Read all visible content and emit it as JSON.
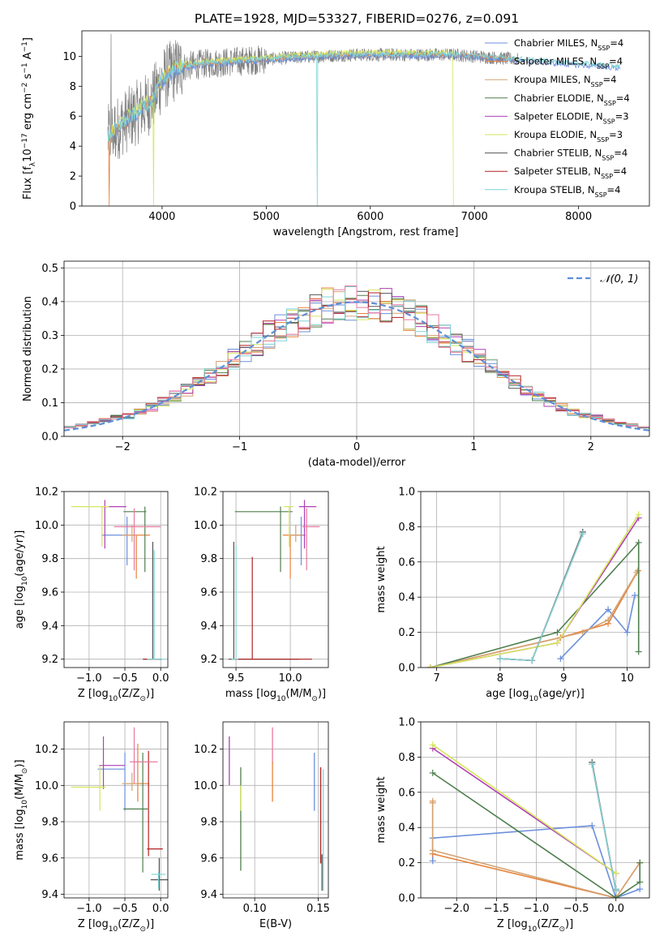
{
  "colors": {
    "Chabrier MILES": "#6c8fdc",
    "Salpeter MILES": "#e8823a",
    "Kroupa MILES": "#d4a373",
    "Chabrier ELODIE": "#4f7f4f",
    "Salpeter ELODIE": "#b03fb5",
    "Kroupa ELODIE": "#d6e65c",
    "Chabrier STELIB": "#555555",
    "Salpeter STELIB": "#b22222",
    "Kroupa STELIB": "#7fd4d8",
    "pink": "#e8799f"
  },
  "chart_data": [
    {
      "id": "spectrum",
      "type": "line",
      "title": "PLATE=1928, MJD=53327, FIBERID=0276, z=0.091",
      "xlabel": "wavelength [Angstrom, rest frame]",
      "ylabel": "Flux [f_λ10^-17 erg cm^-2 s^-1 A^-1]",
      "xlim": [
        3230,
        8680
      ],
      "ylim": [
        0,
        11.7
      ],
      "xticks": [
        4000,
        5000,
        6000,
        7000,
        8000
      ],
      "yticks": [
        0,
        2,
        4,
        6,
        8,
        10
      ],
      "legend_position": "right",
      "legend": [
        {
          "name": "Chabrier MILES",
          "nssp": "4"
        },
        {
          "name": "Salpeter MILES",
          "nssp": "4"
        },
        {
          "name": "Kroupa MILES",
          "nssp": "4"
        },
        {
          "name": "Chabrier ELODIE",
          "nssp": "4"
        },
        {
          "name": "Salpeter ELODIE",
          "nssp": "3"
        },
        {
          "name": "Kroupa ELODIE",
          "nssp": "3"
        },
        {
          "name": "Chabrier STELIB",
          "nssp": "4"
        },
        {
          "name": "Salpeter STELIB",
          "nssp": "4"
        },
        {
          "name": "Kroupa STELIB",
          "nssp": "4"
        }
      ],
      "continuum": {
        "x": [
          3480,
          3600,
          3750,
          3900,
          4000,
          4100,
          4200,
          4400,
          4600,
          4800,
          5000,
          5200,
          5500,
          5800,
          6000,
          6300,
          6600,
          6800,
          7000,
          7200,
          7400,
          7600,
          7800,
          8000,
          8200,
          8400
        ],
        "y": [
          4.6,
          5.4,
          6.2,
          7.0,
          8.4,
          9.0,
          9.3,
          9.5,
          9.6,
          9.7,
          9.8,
          9.9,
          10.0,
          10.1,
          10.1,
          10.1,
          10.1,
          10.1,
          10.0,
          9.9,
          9.8,
          9.7,
          9.6,
          9.5,
          9.4,
          9.3
        ]
      }
    },
    {
      "id": "residuals",
      "type": "line",
      "xlabel": "(data-model)/error",
      "ylabel": "Normed distribution",
      "xlim": [
        -2.5,
        2.5
      ],
      "ylim": [
        0,
        0.52
      ],
      "xticks": [
        -2,
        -1,
        0,
        1,
        2
      ],
      "yticks": [
        0.0,
        0.1,
        0.2,
        0.3,
        0.4,
        0.5
      ],
      "legend": [
        {
          "name": "𝒩(0, 1)",
          "style": "dashed"
        }
      ],
      "legend_position": "top-right"
    },
    {
      "id": "age-vs-Z",
      "type": "scatter",
      "xlabel": "Z [log10(Z/Z☉)]",
      "ylabel": "age  [log10(age/yr)]",
      "xlim": [
        -1.35,
        0.1
      ],
      "ylim": [
        9.15,
        10.2
      ],
      "xticks": [
        -1.0,
        -0.5,
        0.0
      ],
      "yticks": [
        9.2,
        9.4,
        9.6,
        9.8,
        10.0,
        10.2
      ],
      "points": [
        {
          "s": "Chabrier MILES",
          "x": -0.47,
          "y": 9.94,
          "xe": [
            0.36,
            0
          ],
          "ye": [
            0.18,
            0.11
          ]
        },
        {
          "s": "Salpeter MILES",
          "x": -0.34,
          "y": 9.94,
          "xe": [
            0.15,
            0.19
          ],
          "ye": [
            0.26,
            0
          ]
        },
        {
          "s": "Kroupa MILES",
          "x": -0.4,
          "y": 9.94,
          "xe": [
            0.14,
            0.08
          ],
          "ye": [
            0.04,
            0.06
          ]
        },
        {
          "s": "Chabrier ELODIE",
          "x": -0.22,
          "y": 10.08,
          "xe": [
            0.3,
            0.02
          ],
          "ye": [
            0.36,
            0.03
          ]
        },
        {
          "s": "Salpeter ELODIE",
          "x": -0.78,
          "y": 10.11,
          "xe": [
            0.05,
            0.3
          ],
          "ye": [
            0.25,
            0.04
          ]
        },
        {
          "s": "Kroupa ELODIE",
          "x": -0.82,
          "y": 10.11,
          "xe": [
            0.43,
            0.1
          ],
          "ye": [
            0.24,
            0
          ]
        },
        {
          "s": "Chabrier STELIB",
          "x": -0.11,
          "y": 9.2,
          "xe": [
            0.13,
            0.13
          ],
          "ye": [
            0,
            0.7
          ]
        },
        {
          "s": "Salpeter STELIB",
          "x": -0.11,
          "y": 9.2,
          "xe": [
            0.14,
            0.12
          ],
          "ye": [
            0,
            0
          ]
        },
        {
          "s": "Kroupa STELIB",
          "x": -0.09,
          "y": 9.2,
          "xe": [
            0.1,
            0.16
          ],
          "ye": [
            0,
            0.65
          ]
        },
        {
          "s": "pink",
          "x": -0.37,
          "y": 9.99,
          "xe": [
            0.28,
            0.37
          ],
          "ye": [
            0.26,
            0.11
          ]
        }
      ]
    },
    {
      "id": "age-vs-mass",
      "type": "scatter",
      "xlabel": "mass [log10(M/M☉)]",
      "ylabel": "",
      "xlim": [
        9.38,
        10.35
      ],
      "ylim": [
        9.15,
        10.2
      ],
      "xticks": [
        9.5,
        10.0
      ],
      "yticks": [
        9.2,
        9.4,
        9.6,
        9.8,
        10.0,
        10.2
      ],
      "points": [
        {
          "s": "Chabrier MILES",
          "x": 10.1,
          "y": 9.94,
          "xe": [
            0.1,
            0.04
          ],
          "ye": [
            0.18,
            0.11
          ]
        },
        {
          "s": "Salpeter MILES",
          "x": 10.0,
          "y": 9.94,
          "xe": [
            0.07,
            0.11
          ],
          "ye": [
            0.26,
            0
          ]
        },
        {
          "s": "Kroupa MILES",
          "x": 10.05,
          "y": 9.94,
          "xe": [
            0.06,
            0.04
          ],
          "ye": [
            0.04,
            0.06
          ]
        },
        {
          "s": "Chabrier ELODIE",
          "x": 9.91,
          "y": 10.08,
          "xe": [
            0.42,
            0.11
          ],
          "ye": [
            0.36,
            0.03
          ]
        },
        {
          "s": "Salpeter ELODIE",
          "x": 10.13,
          "y": 10.11,
          "xe": [
            0.05,
            0.11
          ],
          "ye": [
            0.25,
            0.04
          ]
        },
        {
          "s": "Kroupa ELODIE",
          "x": 9.99,
          "y": 10.11,
          "xe": [
            0.05,
            0.04
          ],
          "ye": [
            0.24,
            0
          ]
        },
        {
          "s": "Chabrier STELIB",
          "x": 9.48,
          "y": 9.2,
          "xe": [
            0.05,
            0.6
          ],
          "ye": [
            0,
            0.7
          ]
        },
        {
          "s": "Salpeter STELIB",
          "x": 9.65,
          "y": 9.2,
          "xe": [
            0.18,
            0.55
          ],
          "ye": [
            0,
            0.61
          ]
        },
        {
          "s": "Kroupa STELIB",
          "x": 9.5,
          "y": 9.2,
          "xe": [
            0.04,
            0.02
          ],
          "ye": [
            0,
            0.68
          ]
        },
        {
          "s": "pink",
          "x": 10.15,
          "y": 9.99,
          "xe": [
            0.04,
            0.12
          ],
          "ye": [
            0.26,
            0.11
          ]
        }
      ]
    },
    {
      "id": "weight-vs-age",
      "type": "line",
      "xlabel": "age  [log10(age/yr)]",
      "ylabel": "mass weight",
      "xlim": [
        6.75,
        10.35
      ],
      "ylim": [
        0.0,
        1.0
      ],
      "xticks": [
        7,
        8,
        9,
        10
      ],
      "yticks": [
        0.0,
        0.2,
        0.4,
        0.6,
        0.8,
        1.0
      ],
      "series": [
        {
          "s": "Chabrier MILES",
          "x": [
            8.95,
            9.7,
            10.0,
            10.12
          ],
          "y": [
            0.05,
            0.33,
            0.2,
            0.41
          ]
        },
        {
          "s": "Salpeter MILES",
          "x": [
            6.9,
            8.95,
            9.7,
            10.17
          ],
          "y": [
            0.0,
            0.17,
            0.25,
            0.55
          ]
        },
        {
          "s": "Kroupa MILES",
          "x": [
            6.9,
            9.3,
            9.7,
            10.15
          ],
          "y": [
            0.0,
            0.2,
            0.27,
            0.54
          ]
        },
        {
          "s": "Chabrier ELODIE",
          "x": [
            6.9,
            8.9,
            10.18,
            10.18
          ],
          "y": [
            0.0,
            0.2,
            0.71,
            0.09
          ]
        },
        {
          "s": "Salpeter ELODIE",
          "x": [
            6.9,
            8.9,
            10.18
          ],
          "y": [
            0.0,
            0.14,
            0.85
          ]
        },
        {
          "s": "Kroupa ELODIE",
          "x": [
            6.9,
            8.9,
            10.18
          ],
          "y": [
            0.0,
            0.14,
            0.87
          ]
        },
        {
          "s": "Chabrier STELIB",
          "x": [
            8.0,
            8.5,
            9.3
          ],
          "y": [
            0.05,
            0.04,
            0.77
          ]
        },
        {
          "s": "Salpeter STELIB",
          "x": [
            8.0,
            8.5,
            9.3
          ],
          "y": [
            0.05,
            0.04,
            0.76
          ]
        },
        {
          "s": "Kroupa STELIB",
          "x": [
            8.0,
            8.5,
            9.3
          ],
          "y": [
            0.05,
            0.04,
            0.76
          ]
        }
      ]
    },
    {
      "id": "mass-vs-Z",
      "type": "scatter",
      "xlabel": "Z [log10(Z/Z☉)]",
      "ylabel": "mass [log10(M/M☉)]",
      "xlim": [
        -1.35,
        0.1
      ],
      "ylim": [
        9.38,
        10.35
      ],
      "xticks": [
        -1.0,
        -0.5,
        0.0
      ],
      "yticks": [
        9.4,
        9.6,
        9.8,
        10.0,
        10.2
      ],
      "points": [
        {
          "s": "Chabrier MILES",
          "x": -0.5,
          "y": 10.09,
          "xe": [
            0.38,
            0
          ],
          "ye": [
            0.23,
            0.09
          ]
        },
        {
          "s": "Salpeter MILES",
          "x": -0.32,
          "y": 10.01,
          "xe": [
            0.18,
            0.16
          ],
          "ye": [
            0.1,
            0.22
          ]
        },
        {
          "s": "Kroupa MILES",
          "x": -0.4,
          "y": 10.01,
          "xe": [
            0.14,
            0.08
          ],
          "ye": [
            0.04,
            0.06
          ]
        },
        {
          "s": "Chabrier ELODIE",
          "x": -0.25,
          "y": 9.87,
          "xe": [
            0.27,
            0.07
          ],
          "ye": [
            0.35,
            0.31
          ]
        },
        {
          "s": "Salpeter ELODIE",
          "x": -0.8,
          "y": 10.11,
          "xe": [
            0.06,
            0.3
          ],
          "ye": [
            0.13,
            0.16
          ]
        },
        {
          "s": "Kroupa ELODIE",
          "x": -0.85,
          "y": 9.99,
          "xe": [
            0.4,
            0.08
          ],
          "ye": [
            0.13,
            0.12
          ]
        },
        {
          "s": "Chabrier STELIB",
          "x": -0.02,
          "y": 9.48,
          "xe": [
            0.12,
            0.12
          ],
          "ye": [
            0.06,
            0.12
          ]
        },
        {
          "s": "Salpeter STELIB",
          "x": -0.17,
          "y": 9.65,
          "xe": [
            0.02,
            0.2
          ],
          "ye": [
            0.04,
            0.54
          ]
        },
        {
          "s": "Kroupa STELIB",
          "x": -0.03,
          "y": 9.51,
          "xe": [
            0.1,
            0.1
          ],
          "ye": [
            0.08,
            0.01
          ]
        },
        {
          "s": "pink",
          "x": -0.37,
          "y": 10.13,
          "xe": [
            0.06,
            0.33
          ],
          "ye": [
            0.12,
            0.19
          ]
        }
      ]
    },
    {
      "id": "mass-vs-EBV",
      "type": "scatter",
      "xlabel": "E(B-V)",
      "ylabel": "",
      "xlim": [
        0.075,
        0.158
      ],
      "ylim": [
        9.38,
        10.35
      ],
      "xticks": [
        0.1,
        0.15
      ],
      "yticks": [
        9.4,
        9.6,
        9.8,
        10.0,
        10.2
      ],
      "bars": [
        {
          "s": "Salpeter ELODIE",
          "x": 0.08,
          "ylo": 10.0,
          "yhi": 10.27
        },
        {
          "s": "Chabrier ELODIE",
          "x": 0.089,
          "ylo": 9.53,
          "yhi": 10.1
        },
        {
          "s": "Kroupa ELODIE",
          "x": 0.089,
          "ylo": 9.86,
          "yhi": 10.0
        },
        {
          "s": "pink",
          "x": 0.114,
          "ylo": 10.12,
          "yhi": 10.32
        },
        {
          "s": "Salpeter MILES",
          "x": 0.114,
          "ylo": 9.91,
          "yhi": 10.13
        },
        {
          "s": "Chabrier MILES",
          "x": 0.147,
          "ylo": 9.86,
          "yhi": 10.18
        },
        {
          "s": "Salpeter STELIB",
          "x": 0.152,
          "ylo": 9.57,
          "yhi": 10.1
        },
        {
          "s": "Chabrier STELIB",
          "x": 0.153,
          "ylo": 9.42,
          "yhi": 9.62
        },
        {
          "s": "Kroupa STELIB",
          "x": 0.154,
          "ylo": 9.42,
          "yhi": 10.09
        }
      ]
    },
    {
      "id": "weight-vs-Z",
      "type": "line",
      "xlabel": "Z [log10(Z/Z☉)]",
      "ylabel": "mass weight",
      "xlim": [
        -2.45,
        0.42
      ],
      "ylim": [
        0.0,
        1.0
      ],
      "xticks": [
        -2.0,
        -1.5,
        -1.0,
        -0.5,
        0.0
      ],
      "yticks": [
        0.0,
        0.2,
        0.4,
        0.6,
        0.8,
        1.0
      ],
      "series": [
        {
          "s": "Chabrier MILES",
          "x": [
            -2.3,
            -2.3,
            -0.3,
            0.0,
            0.3
          ],
          "y": [
            0.21,
            0.34,
            0.41,
            0.0,
            0.05
          ]
        },
        {
          "s": "Salpeter MILES",
          "x": [
            -2.3,
            -2.3,
            0.0,
            0.3
          ],
          "y": [
            0.54,
            0.25,
            0.0,
            0.2
          ]
        },
        {
          "s": "Kroupa MILES",
          "x": [
            -2.3,
            -2.3,
            0.0,
            0.3
          ],
          "y": [
            0.55,
            0.27,
            0.0,
            0.2
          ]
        },
        {
          "s": "Chabrier ELODIE",
          "x": [
            -2.3,
            0.0,
            0.3,
            0.3
          ],
          "y": [
            0.71,
            0.0,
            0.09,
            0.2
          ]
        },
        {
          "s": "Salpeter ELODIE",
          "x": [
            -2.3,
            0.0
          ],
          "y": [
            0.85,
            0.14
          ]
        },
        {
          "s": "Kroupa ELODIE",
          "x": [
            -2.3,
            0.0
          ],
          "y": [
            0.87,
            0.14
          ]
        },
        {
          "s": "Chabrier STELIB",
          "x": [
            -0.3,
            0.0,
            0.0
          ],
          "y": [
            0.77,
            0.04,
            0.05
          ]
        },
        {
          "s": "Salpeter STELIB",
          "x": [
            -0.3,
            0.0,
            0.0
          ],
          "y": [
            0.76,
            0.04,
            0.05
          ]
        },
        {
          "s": "Kroupa STELIB",
          "x": [
            -0.3,
            0.0,
            0.0
          ],
          "y": [
            0.76,
            0.04,
            0.05
          ]
        }
      ]
    }
  ]
}
